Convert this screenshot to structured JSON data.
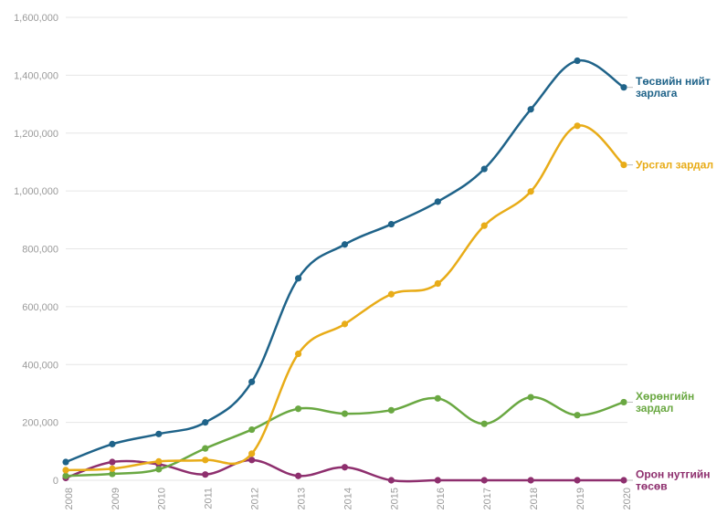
{
  "chart_data": {
    "type": "line",
    "title": "",
    "xlabel": "",
    "ylabel": "",
    "ylim": [
      0,
      1600000
    ],
    "grid": true,
    "y_ticks": [
      "0",
      "200,000",
      "400,000",
      "600,000",
      "800,000",
      "1,000,000",
      "1,200,000",
      "1,400,000",
      "1,600,000"
    ],
    "x": [
      "2008",
      "2009",
      "2010",
      "2011",
      "2012",
      "2013",
      "2014",
      "2015",
      "2016",
      "2017",
      "2018",
      "2019",
      "2020"
    ],
    "series": [
      {
        "key": "total",
        "name_lines": [
          "Төсвийн нийт",
          "зарлага"
        ],
        "color": "#1f6389",
        "values": [
          63000,
          125000,
          160000,
          200000,
          340000,
          698000,
          815000,
          885000,
          963000,
          1076000,
          1282000,
          1450000,
          1358000
        ]
      },
      {
        "key": "current",
        "name_lines": [
          "Урсгал зардал"
        ],
        "color": "#e8ac18",
        "values": [
          35000,
          40000,
          65000,
          70000,
          92000,
          437000,
          540000,
          643000,
          680000,
          880000,
          998000,
          1225000,
          1090000
        ]
      },
      {
        "key": "capital",
        "name_lines": [
          "Хөрөнгийн",
          "зардал"
        ],
        "color": "#6aa842",
        "values": [
          15000,
          22000,
          38000,
          110000,
          175000,
          247000,
          230000,
          242000,
          283000,
          195000,
          287000,
          225000,
          270000
        ]
      },
      {
        "key": "local",
        "name_lines": [
          "Орон нутгийн",
          "төсөв"
        ],
        "color": "#8e2f6e",
        "values": [
          8000,
          63000,
          55000,
          20000,
          70000,
          15000,
          45000,
          0,
          0,
          0,
          0,
          0,
          0
        ]
      }
    ]
  }
}
